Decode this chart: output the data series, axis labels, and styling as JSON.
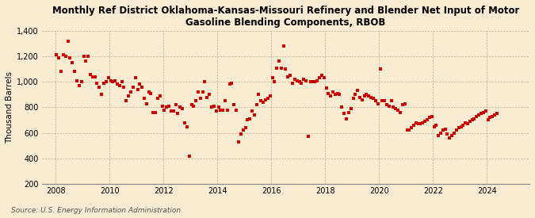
{
  "title": "Monthly Ref District Oklahoma-Kansas-Missouri Refinery and Blender Net Input of Motor\nGasoline Blending Components, RBOB",
  "ylabel": "Thousand Barrels",
  "source": "Source: U.S. Energy Information Administration",
  "bg_color": "#faecd2",
  "marker_color": "#cc0000",
  "ylim": [
    200,
    1400
  ],
  "yticks": [
    200,
    400,
    600,
    800,
    1000,
    1200,
    1400
  ],
  "ytick_labels": [
    "200",
    "400",
    "600",
    "800",
    "1,000",
    "1,200",
    "1,400"
  ],
  "xtick_years": [
    2008,
    2010,
    2012,
    2014,
    2016,
    2018,
    2020,
    2022,
    2024
  ],
  "data": [
    1210,
    1190,
    1080,
    1210,
    1200,
    1320,
    1190,
    1150,
    1080,
    1010,
    970,
    1000,
    1200,
    1160,
    1200,
    1060,
    1040,
    1040,
    990,
    960,
    900,
    990,
    1000,
    1030,
    1010,
    1000,
    1010,
    980,
    970,
    1000,
    960,
    850,
    890,
    920,
    960,
    1030,
    940,
    980,
    960,
    870,
    830,
    920,
    910,
    760,
    760,
    870,
    890,
    810,
    780,
    800,
    810,
    770,
    770,
    820,
    750,
    800,
    790,
    680,
    650,
    420,
    820,
    810,
    850,
    920,
    870,
    920,
    1000,
    880,
    900,
    800,
    810,
    770,
    800,
    780,
    780,
    850,
    780,
    980,
    990,
    820,
    780,
    530,
    590,
    620,
    640,
    700,
    710,
    770,
    740,
    820,
    900,
    850,
    840,
    860,
    870,
    890,
    1030,
    1000,
    1110,
    1160,
    1110,
    1280,
    1100,
    1040,
    1050,
    990,
    1020,
    1010,
    1000,
    990,
    1020,
    1010,
    570,
    1000,
    1000,
    1000,
    1010,
    1030,
    1050,
    1030,
    950,
    910,
    890,
    920,
    900,
    910,
    900,
    800,
    750,
    710,
    760,
    790,
    870,
    900,
    930,
    880,
    860,
    890,
    900,
    890,
    880,
    870,
    850,
    830,
    1100,
    850,
    850,
    820,
    810,
    850,
    800,
    790,
    780,
    760,
    820,
    830,
    620,
    620,
    640,
    660,
    680,
    670,
    670,
    680,
    690,
    700,
    720,
    730,
    650,
    660,
    580,
    600,
    620,
    630,
    590,
    560,
    580,
    600,
    620,
    640,
    650,
    660,
    680,
    670,
    690,
    700,
    710,
    730,
    740,
    750,
    760,
    770,
    700,
    720,
    730,
    740,
    750
  ],
  "start_year": 2008,
  "start_month": 1
}
